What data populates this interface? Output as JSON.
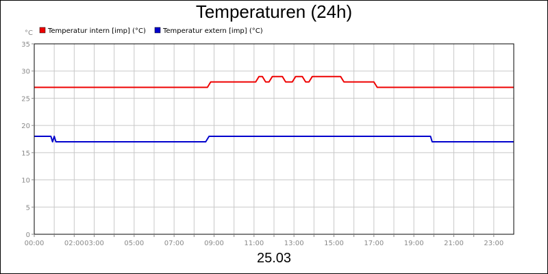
{
  "chart_data": {
    "type": "line",
    "title": "Temperaturen (24h)",
    "xlabel": "25.03",
    "ylabel": "°C",
    "xlim": [
      "00:00",
      "24:00"
    ],
    "ylim": [
      0,
      35
    ],
    "grid": true,
    "legend_placement": "top-left",
    "y_ticks": [
      0,
      5,
      10,
      15,
      20,
      25,
      30,
      35
    ],
    "x_ticks": [
      {
        "t": "00:00",
        "label": "00:00"
      },
      {
        "t": "01:00",
        "label": ""
      },
      {
        "t": "02:00",
        "label": "02:00"
      },
      {
        "t": "03:00",
        "label": "03:00"
      },
      {
        "t": "04:00",
        "label": ""
      },
      {
        "t": "05:00",
        "label": "05:00"
      },
      {
        "t": "06:00",
        "label": ""
      },
      {
        "t": "07:00",
        "label": "07:00"
      },
      {
        "t": "08:00",
        "label": ""
      },
      {
        "t": "09:00",
        "label": "09:00"
      },
      {
        "t": "10:00",
        "label": ""
      },
      {
        "t": "11:00",
        "label": "11:00"
      },
      {
        "t": "12:00",
        "label": ""
      },
      {
        "t": "13:00",
        "label": "13:00"
      },
      {
        "t": "14:00",
        "label": ""
      },
      {
        "t": "15:00",
        "label": "15:00"
      },
      {
        "t": "16:00",
        "label": ""
      },
      {
        "t": "17:00",
        "label": "17:00"
      },
      {
        "t": "18:00",
        "label": ""
      },
      {
        "t": "19:00",
        "label": "19:00"
      },
      {
        "t": "20:00",
        "label": ""
      },
      {
        "t": "21:00",
        "label": "21:00"
      },
      {
        "t": "22:00",
        "label": ""
      },
      {
        "t": "23:00",
        "label": "23:00"
      }
    ],
    "series": [
      {
        "name": "Temperatur intern [imp] (°C)",
        "color": "#ee0000",
        "points": [
          [
            "00:00",
            27
          ],
          [
            "08:40",
            27
          ],
          [
            "08:50",
            28
          ],
          [
            "11:05",
            28
          ],
          [
            "11:15",
            29
          ],
          [
            "11:25",
            29
          ],
          [
            "11:35",
            28
          ],
          [
            "11:45",
            28
          ],
          [
            "11:55",
            29
          ],
          [
            "12:25",
            29
          ],
          [
            "12:35",
            28
          ],
          [
            "12:55",
            28
          ],
          [
            "13:05",
            29
          ],
          [
            "13:25",
            29
          ],
          [
            "13:35",
            28
          ],
          [
            "13:45",
            28
          ],
          [
            "13:55",
            29
          ],
          [
            "15:20",
            29
          ],
          [
            "15:30",
            28
          ],
          [
            "17:00",
            28
          ],
          [
            "17:10",
            27
          ],
          [
            "24:00",
            27
          ]
        ]
      },
      {
        "name": "Temperatur extern [imp] (°C)",
        "color": "#0000cc",
        "points": [
          [
            "00:00",
            18
          ],
          [
            "00:50",
            18
          ],
          [
            "00:55",
            17
          ],
          [
            "01:00",
            18
          ],
          [
            "01:05",
            17
          ],
          [
            "08:35",
            17
          ],
          [
            "08:45",
            18
          ],
          [
            "19:50",
            18
          ],
          [
            "19:55",
            17
          ],
          [
            "24:00",
            17
          ]
        ]
      }
    ]
  }
}
